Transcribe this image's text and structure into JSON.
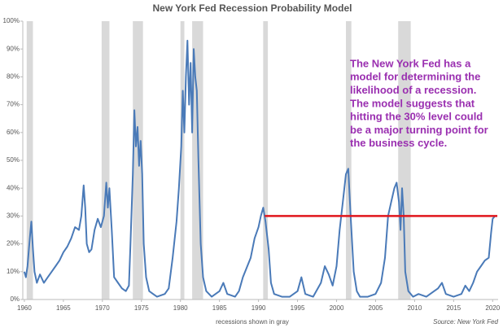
{
  "chart_data": {
    "type": "line",
    "title": "New York Fed Recession Probability Model",
    "note": "recessions shown in gray",
    "source": "Source: New York Fed",
    "annotation": [
      "The New York Fed has a",
      "model for determining the",
      "likelihood of a recession.",
      "The model suggests that",
      "hitting the 30% level could",
      "be a major turning point for",
      "the business cycle."
    ],
    "annotation_color": "#9a2fb0",
    "xlim": [
      1959.8,
      2020.7
    ],
    "ylim": [
      0,
      100
    ],
    "xticks": [
      1960,
      1965,
      1970,
      1975,
      1980,
      1985,
      1990,
      1995,
      2000,
      2005,
      2010,
      2015,
      2020
    ],
    "yticks": [
      {
        "value": 0,
        "label": "0%"
      },
      {
        "value": 10,
        "label": "10%"
      },
      {
        "value": 20,
        "label": "20%"
      },
      {
        "value": 30,
        "label": "30%"
      },
      {
        "value": 40,
        "label": "40%"
      },
      {
        "value": 50,
        "label": "50%"
      },
      {
        "value": 60,
        "label": "60%"
      },
      {
        "value": 70,
        "label": "70%"
      },
      {
        "value": 80,
        "label": "80%"
      },
      {
        "value": 90,
        "label": "90%"
      },
      {
        "value": 100,
        "label": "100%"
      }
    ],
    "recession_color": "#d9d9d9",
    "recessions": [
      [
        1960.3,
        1961.1
      ],
      [
        1969.9,
        1970.9
      ],
      [
        1973.9,
        1975.2
      ],
      [
        1980.0,
        1980.5
      ],
      [
        1981.5,
        1982.9
      ],
      [
        1990.6,
        1991.2
      ],
      [
        2001.2,
        2001.9
      ],
      [
        2007.9,
        2009.5
      ]
    ],
    "threshold": {
      "value": 30,
      "x": [
        1990.8,
        2020.6
      ],
      "color": "#e0161c"
    },
    "series": [
      {
        "color": "#4a7ab8",
        "x": [
          1960.0,
          1960.2,
          1960.4,
          1960.7,
          1960.9,
          1961.1,
          1961.3,
          1961.6,
          1962,
          1962.5,
          1963,
          1963.5,
          1964,
          1964.5,
          1965,
          1965.5,
          1966,
          1966.5,
          1967,
          1967.3,
          1967.6,
          1967.8,
          1968,
          1968.3,
          1968.6,
          1969,
          1969.4,
          1969.8,
          1970.2,
          1970.5,
          1970.7,
          1970.9,
          1971.2,
          1971.5,
          1972,
          1972.5,
          1973,
          1973.4,
          1973.6,
          1973.9,
          1974.1,
          1974.3,
          1974.5,
          1974.7,
          1974.9,
          1975.1,
          1975.3,
          1975.6,
          1976,
          1976.5,
          1977,
          1978,
          1978.5,
          1979,
          1979.5,
          1979.8,
          1980.1,
          1980.3,
          1980.5,
          1980.7,
          1980.9,
          1981.1,
          1981.3,
          1981.5,
          1981.7,
          1981.9,
          1982.1,
          1982.3,
          1982.6,
          1982.9,
          1983.3,
          1984,
          1985,
          1985.5,
          1986,
          1987,
          1987.5,
          1988,
          1989,
          1989.5,
          1990,
          1990.3,
          1990.6,
          1990.9,
          1991.3,
          1991.6,
          1992,
          1993,
          1994,
          1995,
          1995.5,
          1996,
          1997,
          1998,
          1998.5,
          1999,
          1999.5,
          2000,
          2000.4,
          2000.8,
          2001.2,
          2001.5,
          2001.8,
          2002.2,
          2002.6,
          2003,
          2004,
          2005,
          2005.7,
          2006.2,
          2006.6,
          2007,
          2007.4,
          2007.7,
          2008,
          2008.2,
          2008.4,
          2008.6,
          2008.8,
          2009.2,
          2009.8,
          2010.5,
          2011.5,
          2012.5,
          2013,
          2013.5,
          2014,
          2015,
          2016,
          2016.5,
          2017,
          2017.5,
          2018,
          2018.5,
          2019,
          2019.5,
          2019.8,
          2020,
          2020.3
        ],
        "values": [
          10,
          8,
          12,
          22,
          28,
          18,
          10,
          6,
          9,
          6,
          8,
          10,
          12,
          14,
          17,
          19,
          22,
          26,
          25,
          30,
          41,
          33,
          20,
          17,
          18,
          25,
          29,
          26,
          30,
          42,
          33,
          40,
          25,
          8,
          6,
          4,
          3,
          5,
          20,
          45,
          68,
          55,
          62,
          48,
          57,
          45,
          20,
          8,
          3,
          2,
          1,
          2,
          4,
          15,
          28,
          40,
          55,
          75,
          60,
          80,
          93,
          70,
          85,
          60,
          90,
          80,
          75,
          50,
          20,
          8,
          3,
          1,
          3,
          6,
          2,
          1,
          3,
          8,
          15,
          22,
          26,
          30,
          33,
          28,
          18,
          6,
          2,
          1,
          1,
          3,
          8,
          2,
          1,
          6,
          12,
          9,
          5,
          12,
          25,
          35,
          45,
          47,
          30,
          10,
          3,
          1,
          1,
          2,
          6,
          15,
          30,
          35,
          40,
          42,
          35,
          25,
          40,
          30,
          10,
          3,
          1,
          2,
          1,
          3,
          4,
          6,
          2,
          1,
          2,
          5,
          3,
          6,
          10,
          12,
          14,
          15,
          24,
          29,
          30
        ]
      }
    ]
  }
}
